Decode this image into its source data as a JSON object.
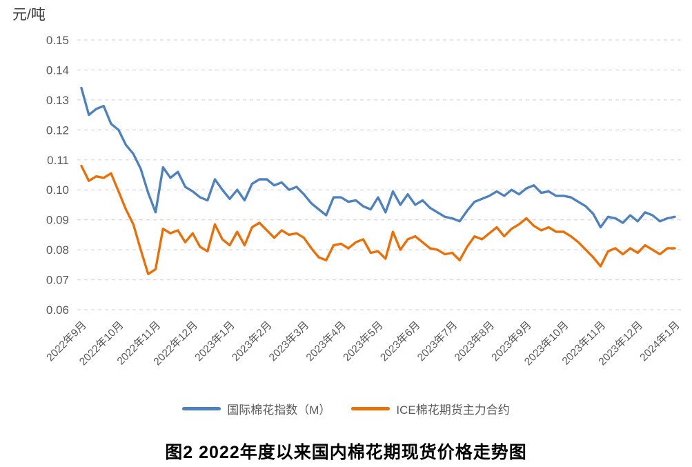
{
  "chart_data": {
    "type": "line",
    "title": "图2 2022年度以来国内棉花期现货价格走势图",
    "unit": "元/吨",
    "xlabel": "",
    "ylabel": "元/吨",
    "ylim": [
      0.06,
      0.15
    ],
    "y_tick_step": 0.01,
    "y_tick_labels": [
      "0.15",
      "0.14",
      "0.13",
      "0.12",
      "0.11",
      "0.10",
      "0.09",
      "0.08",
      "0.07",
      "0.06"
    ],
    "x_tick_labels": [
      "2022年9月",
      "2022年10月",
      "2022年11月",
      "2022年12月",
      "2023年1月",
      "2023年2月",
      "2023年3月",
      "2023年4月",
      "2023年5月",
      "2023年6月",
      "2023年7月",
      "2023年8月",
      "2023年9月",
      "2023年10月",
      "2023年11月",
      "2023年12月",
      "2024年1月"
    ],
    "grid": "horizontal-dashed",
    "gridline_color": "#d9d9d9",
    "tick_label_color": "#595959",
    "legend_position": "bottom-center",
    "points_per_month": 5,
    "series": [
      {
        "name": "国际棉花指数（M）",
        "color": "#4f81bd",
        "values": [
          0.134,
          0.125,
          0.127,
          0.128,
          0.122,
          0.12,
          0.115,
          0.112,
          0.107,
          0.099,
          0.0925,
          0.1075,
          0.104,
          0.106,
          0.101,
          0.0995,
          0.0975,
          0.0965,
          0.1035,
          0.1,
          0.097,
          0.1,
          0.0965,
          0.102,
          0.1035,
          0.1035,
          0.1015,
          0.1025,
          0.1,
          0.101,
          0.0985,
          0.0955,
          0.0935,
          0.0915,
          0.0975,
          0.0975,
          0.096,
          0.0965,
          0.0945,
          0.0935,
          0.0975,
          0.0925,
          0.0995,
          0.095,
          0.0985,
          0.095,
          0.0965,
          0.094,
          0.0925,
          0.091,
          0.0905,
          0.0895,
          0.093,
          0.096,
          0.097,
          0.098,
          0.0995,
          0.098,
          0.1,
          0.0985,
          0.1005,
          0.1015,
          0.099,
          0.0995,
          0.098,
          0.098,
          0.0975,
          0.096,
          0.0945,
          0.092,
          0.0875,
          0.091,
          0.0905,
          0.089,
          0.0915,
          0.0895,
          0.0925,
          0.0915,
          0.0895,
          0.0905,
          0.091
        ]
      },
      {
        "name": "ICE棉花期货主力合约",
        "color": "#e8700a",
        "values": [
          0.108,
          0.103,
          0.1045,
          0.104,
          0.1055,
          0.0995,
          0.0935,
          0.0885,
          0.08,
          0.0719,
          0.0735,
          0.087,
          0.0855,
          0.0865,
          0.0825,
          0.0855,
          0.081,
          0.0795,
          0.0885,
          0.0835,
          0.0815,
          0.086,
          0.0815,
          0.0875,
          0.089,
          0.0865,
          0.084,
          0.0865,
          0.085,
          0.0855,
          0.084,
          0.0805,
          0.0775,
          0.0765,
          0.0815,
          0.082,
          0.0805,
          0.0825,
          0.0835,
          0.079,
          0.0795,
          0.077,
          0.086,
          0.08,
          0.0835,
          0.0845,
          0.0825,
          0.0805,
          0.08,
          0.0785,
          0.079,
          0.0765,
          0.081,
          0.0845,
          0.0835,
          0.0855,
          0.0875,
          0.0845,
          0.087,
          0.0885,
          0.0905,
          0.088,
          0.0865,
          0.0875,
          0.086,
          0.086,
          0.0845,
          0.0825,
          0.08,
          0.0775,
          0.0745,
          0.0795,
          0.0805,
          0.0785,
          0.0805,
          0.079,
          0.0815,
          0.08,
          0.0785,
          0.0805,
          0.0805
        ]
      }
    ]
  }
}
